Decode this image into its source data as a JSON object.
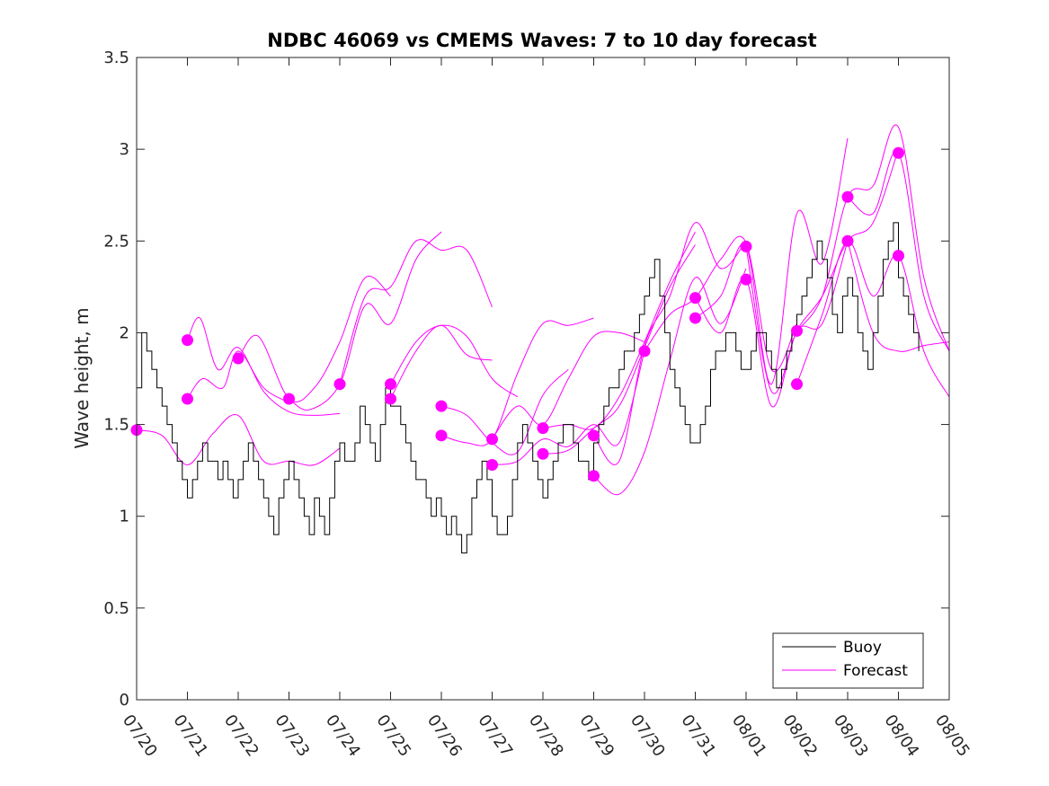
{
  "chart_data": {
    "type": "line",
    "title": "NDBC 46069 vs CMEMS Waves: 7 to 10 day forecast",
    "xlabel": "",
    "ylabel": "Wave height, m",
    "ylim": [
      0,
      3.5
    ],
    "yticks": [
      "0",
      "0.5",
      "1",
      "1.5",
      "2",
      "2.5",
      "3",
      "3.5"
    ],
    "xlim": [
      0,
      16
    ],
    "xticks": [
      "07/20",
      "07/21",
      "07/22",
      "07/23",
      "07/24",
      "07/25",
      "07/26",
      "07/27",
      "07/28",
      "07/29",
      "07/30",
      "07/31",
      "08/01",
      "08/02",
      "08/03",
      "08/04",
      "08/05"
    ],
    "grid": false,
    "legend": {
      "position": "bottom-right",
      "entries": [
        "Buoy",
        "Forecast"
      ]
    },
    "colors": {
      "buoy": "#000000",
      "forecast": "#ff00ff"
    },
    "buoy": {
      "name": "Buoy",
      "x": [
        0,
        0.1,
        0.2,
        0.3,
        0.4,
        0.5,
        0.6,
        0.7,
        0.8,
        0.9,
        1.0,
        1.1,
        1.2,
        1.3,
        1.4,
        1.5,
        1.6,
        1.7,
        1.8,
        1.9,
        2.0,
        2.1,
        2.2,
        2.3,
        2.4,
        2.5,
        2.6,
        2.7,
        2.8,
        2.9,
        3.0,
        3.1,
        3.2,
        3.3,
        3.4,
        3.5,
        3.6,
        3.7,
        3.8,
        3.9,
        4.0,
        4.1,
        4.2,
        4.3,
        4.4,
        4.5,
        4.6,
        4.7,
        4.8,
        4.9,
        5.0,
        5.1,
        5.2,
        5.3,
        5.4,
        5.5,
        5.6,
        5.7,
        5.8,
        5.9,
        6.0,
        6.1,
        6.2,
        6.3,
        6.4,
        6.5,
        6.6,
        6.7,
        6.8,
        6.9,
        7.0,
        7.1,
        7.2,
        7.3,
        7.4,
        7.5,
        7.6,
        7.7,
        7.8,
        7.9,
        8.0,
        8.1,
        8.2,
        8.3,
        8.4,
        8.5,
        8.6,
        8.7,
        8.8,
        8.9,
        9.0,
        9.1,
        9.2,
        9.3,
        9.4,
        9.5,
        9.6,
        9.7,
        9.8,
        9.9,
        10.0,
        10.1,
        10.2,
        10.3,
        10.4,
        10.5,
        10.6,
        10.7,
        10.8,
        10.9,
        11.0,
        11.1,
        11.2,
        11.3,
        11.4,
        11.5,
        11.6,
        11.7,
        11.8,
        11.9,
        12.0,
        12.1,
        12.2,
        12.3,
        12.4,
        12.5,
        12.6,
        12.7,
        12.8,
        12.9,
        13.0,
        13.1,
        13.2,
        13.3,
        13.4,
        13.5,
        13.6,
        13.7,
        13.8,
        13.9,
        14.0,
        14.1,
        14.2,
        14.3,
        14.4,
        14.5,
        14.6,
        14.7,
        14.8,
        14.9,
        15.0,
        15.1,
        15.2,
        15.3,
        15.4
      ],
      "y": [
        1.7,
        2.0,
        1.9,
        1.8,
        1.7,
        1.6,
        1.5,
        1.4,
        1.3,
        1.2,
        1.1,
        1.2,
        1.3,
        1.4,
        1.3,
        1.3,
        1.2,
        1.3,
        1.2,
        1.1,
        1.2,
        1.3,
        1.4,
        1.3,
        1.2,
        1.1,
        1.0,
        0.9,
        1.1,
        1.2,
        1.3,
        1.2,
        1.1,
        1.0,
        0.9,
        1.1,
        1.0,
        0.9,
        1.1,
        1.3,
        1.4,
        1.3,
        1.3,
        1.4,
        1.6,
        1.5,
        1.4,
        1.3,
        1.5,
        1.7,
        1.6,
        1.6,
        1.5,
        1.4,
        1.3,
        1.2,
        1.2,
        1.1,
        1.0,
        1.1,
        1.0,
        0.9,
        1.0,
        0.9,
        0.8,
        0.9,
        1.1,
        1.2,
        1.3,
        1.2,
        1.0,
        0.9,
        0.9,
        1.0,
        1.2,
        1.4,
        1.5,
        1.4,
        1.3,
        1.2,
        1.1,
        1.2,
        1.3,
        1.4,
        1.5,
        1.5,
        1.4,
        1.3,
        1.3,
        1.2,
        1.4,
        1.5,
        1.6,
        1.7,
        1.7,
        1.8,
        1.9,
        1.9,
        2.0,
        2.1,
        2.2,
        2.3,
        2.4,
        2.2,
        2.0,
        1.8,
        1.7,
        1.6,
        1.5,
        1.4,
        1.4,
        1.5,
        1.6,
        1.8,
        1.9,
        1.9,
        2.0,
        2.0,
        1.9,
        1.8,
        1.8,
        1.9,
        2.0,
        2.0,
        1.9,
        1.8,
        1.7,
        1.8,
        1.9,
        2.0,
        2.1,
        2.2,
        2.3,
        2.4,
        2.5,
        2.4,
        2.3,
        2.1,
        2.0,
        2.2,
        2.3,
        2.2,
        2.0,
        1.9,
        1.8,
        2.0,
        2.2,
        2.4,
        2.5,
        2.6,
        2.3,
        2.2,
        2.1,
        2.0,
        1.9
      ]
    },
    "forecast_series": [
      {
        "x": [
          0.0,
          0.5,
          1.0,
          1.5,
          2.0,
          2.5,
          3.0,
          3.5,
          4.0
        ],
        "y": [
          1.47,
          1.44,
          1.28,
          1.45,
          1.55,
          1.3,
          1.3,
          1.28,
          1.37
        ]
      },
      {
        "x": [
          1.0,
          1.3,
          1.7,
          2.0,
          2.5,
          3.0
        ],
        "y": [
          1.64,
          1.75,
          1.7,
          1.9,
          1.7,
          1.62
        ]
      },
      {
        "x": [
          1.0,
          1.25,
          1.6,
          2.0,
          2.5,
          3.0,
          3.5,
          4.0
        ],
        "y": [
          1.96,
          2.08,
          1.8,
          1.92,
          1.68,
          1.57,
          1.55,
          1.56
        ]
      },
      {
        "x": [
          2.0,
          2.4,
          3.0,
          3.5,
          4.0,
          4.5,
          5.0
        ],
        "y": [
          1.86,
          1.98,
          1.64,
          1.7,
          1.95,
          2.3,
          2.2
        ]
      },
      {
        "x": [
          3.0,
          3.4,
          4.0,
          4.5,
          5.0,
          5.5,
          6.0
        ],
        "y": [
          1.64,
          1.58,
          1.72,
          2.15,
          2.05,
          2.4,
          2.55
        ]
      },
      {
        "x": [
          4.0,
          4.5,
          5.0,
          5.5,
          6.0,
          6.5,
          7.0
        ],
        "y": [
          1.72,
          2.2,
          2.25,
          2.5,
          2.45,
          2.45,
          2.14
        ]
      },
      {
        "x": [
          5.0,
          5.5,
          6.0,
          6.5,
          7.0
        ],
        "y": [
          1.64,
          1.9,
          2.04,
          1.88,
          1.85
        ]
      },
      {
        "x": [
          5.0,
          5.5,
          6.0,
          6.5,
          7.0,
          7.5
        ],
        "y": [
          1.72,
          1.95,
          2.04,
          1.98,
          1.75,
          1.65
        ]
      },
      {
        "x": [
          6.0,
          6.5,
          7.0,
          7.5,
          8.0,
          8.5
        ],
        "y": [
          1.6,
          1.55,
          1.4,
          1.35,
          1.66,
          1.8
        ]
      },
      {
        "x": [
          6.0,
          6.5,
          7.0,
          7.5,
          8.0,
          8.5,
          9.0
        ],
        "y": [
          1.44,
          1.4,
          1.42,
          1.78,
          2.05,
          2.04,
          2.08
        ]
      },
      {
        "x": [
          7.0,
          7.5,
          8.0,
          8.5,
          9.0,
          9.5,
          10.0
        ],
        "y": [
          1.42,
          1.6,
          1.5,
          1.75,
          1.98,
          2.0,
          1.95
        ]
      },
      {
        "x": [
          7.0,
          7.5,
          8.0,
          8.5,
          9.0,
          9.5,
          10.0
        ],
        "y": [
          1.28,
          1.3,
          1.42,
          1.38,
          1.5,
          1.4,
          1.9
        ]
      },
      {
        "x": [
          8.0,
          8.5,
          9.0,
          9.5,
          10.0,
          10.5,
          11.0
        ],
        "y": [
          1.48,
          1.5,
          1.48,
          1.65,
          1.95,
          2.28,
          2.55
        ]
      },
      {
        "x": [
          8.0,
          8.5,
          9.0,
          9.5,
          10.0,
          10.5,
          11.0
        ],
        "y": [
          1.34,
          1.36,
          1.48,
          1.6,
          1.92,
          2.25,
          2.48
        ]
      },
      {
        "x": [
          9.0,
          9.5,
          10.0,
          10.5,
          11.0,
          11.5,
          12.0
        ],
        "y": [
          1.44,
          1.3,
          1.93,
          2.2,
          2.6,
          2.35,
          2.5
        ]
      },
      {
        "x": [
          9.0,
          9.5,
          10.0,
          10.5,
          11.0,
          11.5,
          12.0
        ],
        "y": [
          1.22,
          1.12,
          1.35,
          1.85,
          2.3,
          2.05,
          2.35
        ]
      },
      {
        "x": [
          10.0,
          10.5,
          11.0,
          11.5,
          12.0,
          12.5,
          13.0
        ],
        "y": [
          1.9,
          2.1,
          2.19,
          2.4,
          2.49,
          1.8,
          2.05
        ]
      },
      {
        "x": [
          11.0,
          11.5,
          12.0,
          12.5,
          13.0,
          13.5,
          14.0
        ],
        "y": [
          2.08,
          2.2,
          2.47,
          1.72,
          2.65,
          2.38,
          3.06
        ]
      },
      {
        "x": [
          11.0,
          11.5,
          12.0,
          12.5,
          13.0,
          13.5,
          14.0
        ],
        "y": [
          2.19,
          2.0,
          2.29,
          1.6,
          2.01,
          2.05,
          2.5
        ]
      },
      {
        "x": [
          12.0,
          12.5,
          13.0,
          13.5,
          14.0,
          14.5,
          15.0
        ],
        "y": [
          2.47,
          1.68,
          2.01,
          2.2,
          2.5,
          2.6,
          3.0
        ]
      },
      {
        "x": [
          13.0,
          13.5,
          14.0,
          14.5,
          15.0,
          15.5,
          16.0
        ],
        "y": [
          2.01,
          2.2,
          2.74,
          2.8,
          3.12,
          2.3,
          1.9
        ]
      },
      {
        "x": [
          13.0,
          13.5,
          14.0,
          14.5,
          15.0,
          15.5,
          16.0
        ],
        "y": [
          1.72,
          2.1,
          2.5,
          2.2,
          2.42,
          1.9,
          1.65
        ]
      },
      {
        "x": [
          14.0,
          14.5,
          15.0,
          15.5,
          16.0
        ],
        "y": [
          2.74,
          2.65,
          2.98,
          2.2,
          1.9
        ]
      },
      {
        "x": [
          14.0,
          14.5,
          15.0,
          15.5,
          16.0
        ],
        "y": [
          2.5,
          2.0,
          1.9,
          1.93,
          1.95
        ]
      }
    ],
    "forecast_markers": {
      "name": "Forecast",
      "x": [
        0.0,
        1.0,
        1.0,
        2.0,
        3.0,
        4.0,
        5.0,
        5.0,
        6.0,
        6.0,
        7.0,
        7.0,
        8.0,
        8.0,
        9.0,
        9.0,
        10.0,
        11.0,
        11.0,
        12.0,
        12.0,
        13.0,
        13.0,
        14.0,
        14.0,
        15.0,
        15.0
      ],
      "y": [
        1.47,
        1.96,
        1.64,
        1.86,
        1.64,
        1.72,
        1.72,
        1.64,
        1.6,
        1.44,
        1.42,
        1.28,
        1.48,
        1.34,
        1.44,
        1.22,
        1.9,
        2.19,
        2.08,
        2.47,
        2.29,
        2.01,
        1.72,
        2.74,
        2.5,
        2.98,
        2.42
      ]
    }
  }
}
